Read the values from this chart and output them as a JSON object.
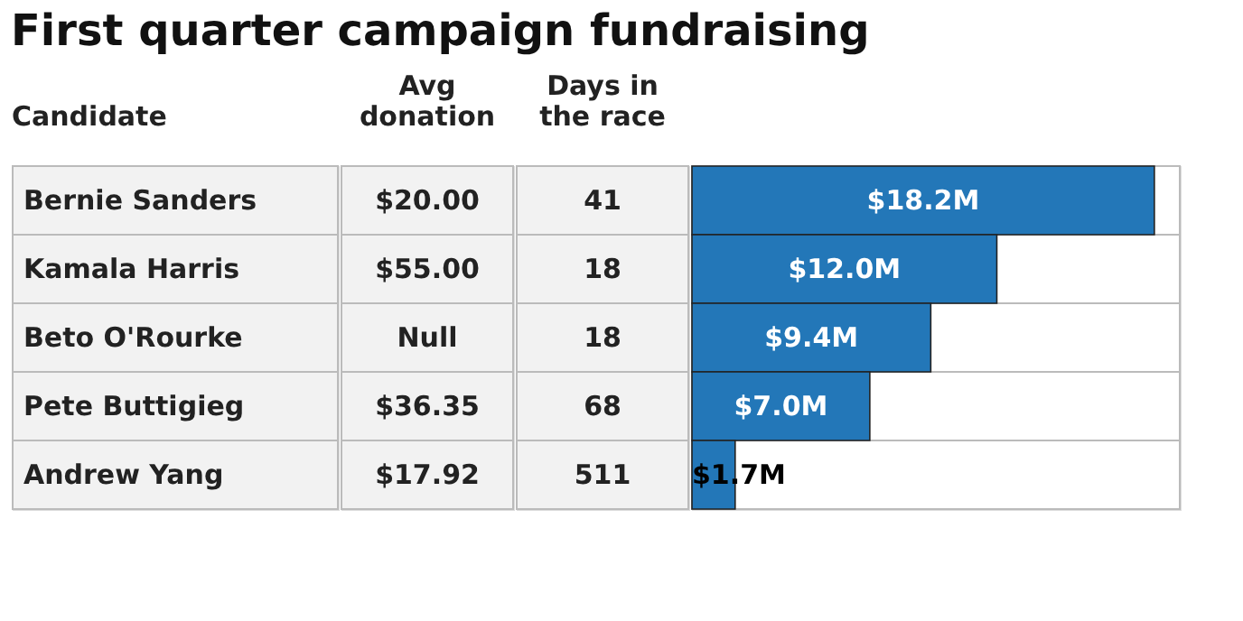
{
  "chart_data": {
    "type": "bar",
    "orientation": "horizontal",
    "title": "First quarter campaign fundraising",
    "ylabel": "Candidate",
    "categories": [
      "Bernie Sanders",
      "Kamala Harris",
      "Beto O'Rourke",
      "Pete Buttigieg",
      "Andrew Yang"
    ],
    "values": [
      18.2,
      12.0,
      9.4,
      7.0,
      1.7
    ],
    "value_labels": [
      "$18.2M",
      "$12.0M",
      "$9.4M",
      "$7.0M",
      "$1.7M"
    ],
    "color": "#2377b8",
    "xlim": [
      0,
      19.2
    ],
    "tick_labels": false,
    "annotations": [
      "Avg donation",
      "Days in the race",
      "$20.00",
      "41",
      "$55.00",
      "18",
      "Null",
      "18",
      "$36.35",
      "68",
      "$17.92",
      "511"
    ]
  }
}
